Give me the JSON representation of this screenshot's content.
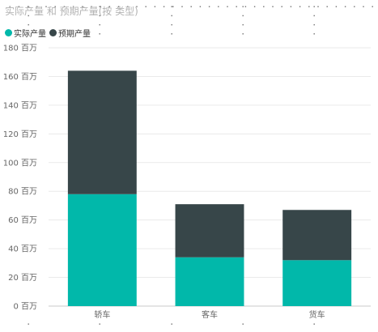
{
  "title": "实际产量 和 预期产量(按 类型)",
  "colors": {
    "actual": "#01B8AA",
    "expected": "#374649",
    "grid": "#eaeaea",
    "axis": "#c8c8c8"
  },
  "chart_data": {
    "type": "bar",
    "stacked": true,
    "categories": [
      "轿车",
      "客车",
      "货车"
    ],
    "series": [
      {
        "name": "实际产量",
        "values": [
          78,
          34,
          32
        ]
      },
      {
        "name": "预期产量",
        "values": [
          86,
          37,
          35
        ]
      }
    ],
    "y_ticks": [
      0,
      20,
      40,
      60,
      80,
      100,
      120,
      140,
      160,
      180
    ],
    "y_tick_labels": [
      "0 百万",
      "20 百万",
      "40 百万",
      "60 百万",
      "80 百万",
      "100 百万",
      "120 百万",
      "140 百万",
      "160 百万",
      "180 百万"
    ],
    "ylim": [
      0,
      180
    ],
    "legend_position": "top-left",
    "grid": true
  }
}
